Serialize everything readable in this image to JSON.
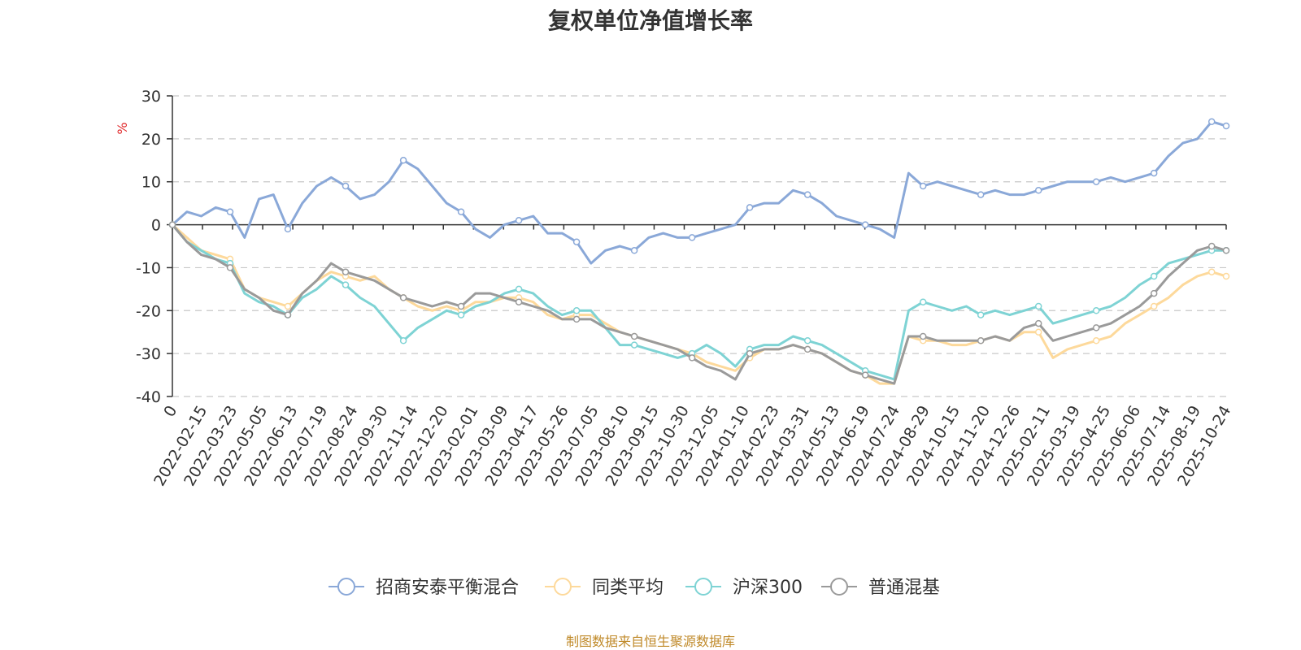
{
  "chart_data": {
    "type": "line",
    "title": "复权单位净值增长率",
    "ylabel": "%",
    "xlabel": "",
    "ylim": [
      -40,
      30
    ],
    "yticks": [
      30,
      20,
      10,
      0,
      -10,
      -20,
      -30,
      -40
    ],
    "grid": true,
    "legend_position": "bottom",
    "x_ticks": [
      "0",
      "2022-02-15",
      "2022-03-23",
      "2022-05-05",
      "2022-06-13",
      "2022-07-19",
      "2022-08-24",
      "2022-09-30",
      "2022-11-14",
      "2022-12-20",
      "2023-02-01",
      "2023-03-09",
      "2023-04-17",
      "2023-05-26",
      "2023-07-05",
      "2023-08-10",
      "2023-09-15",
      "2023-10-30",
      "2023-12-05",
      "2024-01-10",
      "2024-02-23",
      "2024-03-31",
      "2024-05-13",
      "2024-06-19",
      "2024-07-24",
      "2024-08-29",
      "2024-10-15",
      "2024-11-20",
      "2024-12-26",
      "2025-02-11",
      "2025-03-19",
      "2025-04-25",
      "2025-06-06",
      "2025-07-14",
      "2025-08-19",
      "2025-10-24"
    ],
    "series": [
      {
        "name": "招商安泰平衡混合",
        "color": "#8aa8d8",
        "values": [
          0,
          3,
          2,
          4,
          3,
          -3,
          6,
          7,
          -1,
          5,
          9,
          11,
          9,
          6,
          7,
          10,
          15,
          13,
          9,
          5,
          3,
          -1,
          -3,
          0,
          1,
          2,
          -2,
          -2,
          -4,
          -9,
          -6,
          -5,
          -6,
          -3,
          -2,
          -3,
          -3,
          -2,
          -1,
          0,
          4,
          5,
          5,
          8,
          7,
          5,
          2,
          1,
          0,
          -1,
          -3,
          12,
          9,
          10,
          9,
          8,
          7,
          8,
          7,
          7,
          8,
          9,
          10,
          10,
          10,
          11,
          10,
          11,
          12,
          16,
          19,
          20,
          24,
          23
        ]
      },
      {
        "name": "同类平均",
        "color": "#fdd99b",
        "values": [
          0,
          -3,
          -6,
          -7,
          -8,
          -15,
          -17,
          -18,
          -19,
          -16,
          -13,
          -11,
          -12,
          -13,
          -12,
          -15,
          -17,
          -19,
          -20,
          -19,
          -20,
          -18,
          -18,
          -17,
          -17,
          -18,
          -21,
          -22,
          -21,
          -21,
          -23,
          -25,
          -26,
          -27,
          -28,
          -29,
          -30,
          -32,
          -33,
          -34,
          -31,
          -29,
          -29,
          -28,
          -29,
          -30,
          -32,
          -34,
          -35,
          -37,
          -37,
          -26,
          -27,
          -27,
          -28,
          -28,
          -27,
          -26,
          -27,
          -25,
          -25,
          -31,
          -29,
          -28,
          -27,
          -26,
          -23,
          -21,
          -19,
          -17,
          -14,
          -12,
          -11,
          -12
        ]
      },
      {
        "name": "沪深300",
        "color": "#7ed3d4",
        "values": [
          0,
          -4,
          -6,
          -8,
          -9,
          -16,
          -18,
          -19,
          -21,
          -17,
          -15,
          -12,
          -14,
          -17,
          -19,
          -23,
          -27,
          -24,
          -22,
          -20,
          -21,
          -19,
          -18,
          -16,
          -15,
          -16,
          -19,
          -21,
          -20,
          -20,
          -24,
          -28,
          -28,
          -29,
          -30,
          -31,
          -30,
          -28,
          -30,
          -33,
          -29,
          -28,
          -28,
          -26,
          -27,
          -28,
          -30,
          -32,
          -34,
          -35,
          -36,
          -20,
          -18,
          -19,
          -20,
          -19,
          -21,
          -20,
          -21,
          -20,
          -19,
          -23,
          -22,
          -21,
          -20,
          -19,
          -17,
          -14,
          -12,
          -9,
          -8,
          -7,
          -6,
          -6
        ]
      },
      {
        "name": "普通混基",
        "color": "#9a9a9a",
        "values": [
          0,
          -4,
          -7,
          -8,
          -10,
          -15,
          -17,
          -20,
          -21,
          -16,
          -13,
          -9,
          -11,
          -12,
          -13,
          -15,
          -17,
          -18,
          -19,
          -18,
          -19,
          -16,
          -16,
          -17,
          -18,
          -19,
          -20,
          -22,
          -22,
          -22,
          -24,
          -25,
          -26,
          -27,
          -28,
          -29,
          -31,
          -33,
          -34,
          -36,
          -30,
          -29,
          -29,
          -28,
          -29,
          -30,
          -32,
          -34,
          -35,
          -36,
          -37,
          -26,
          -26,
          -27,
          -27,
          -27,
          -27,
          -26,
          -27,
          -24,
          -23,
          -27,
          -26,
          -25,
          -24,
          -23,
          -21,
          -19,
          -16,
          -12,
          -9,
          -6,
          -5,
          -6
        ]
      }
    ]
  },
  "source_note": "制图数据来自恒生聚源数据库"
}
